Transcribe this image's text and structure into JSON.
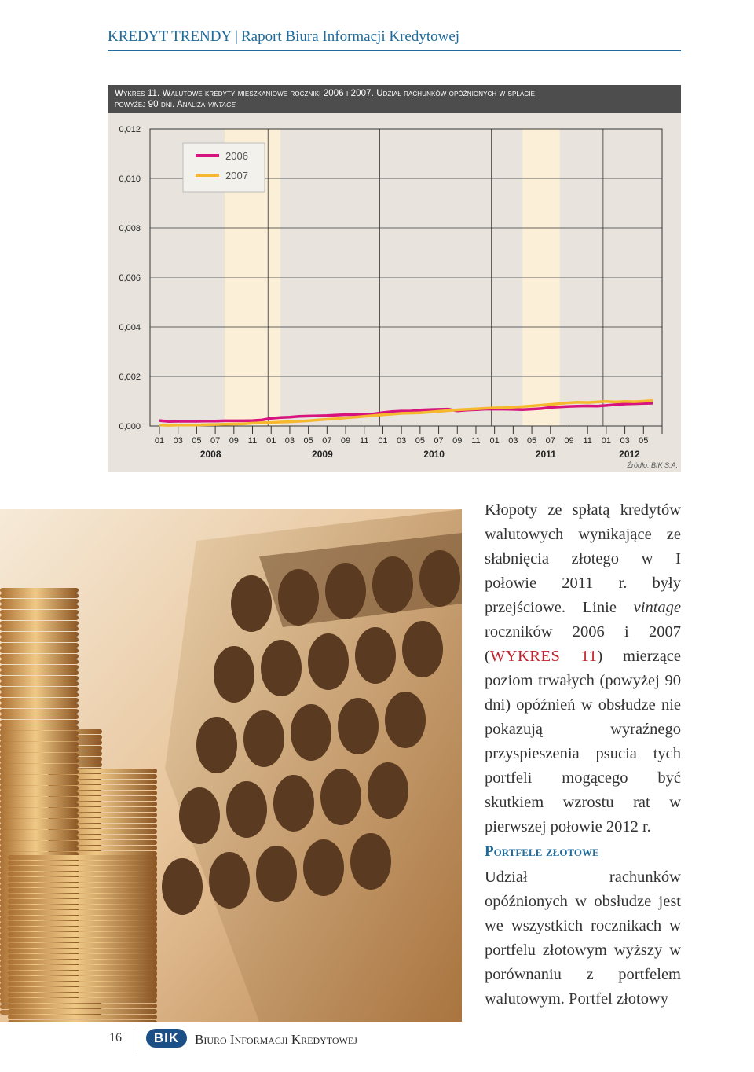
{
  "header": {
    "series_name": "KREDYT TRENDY",
    "separator": "|",
    "report_name": "Raport Biura Informacji Kredytowej"
  },
  "figure": {
    "title_line1": "Wykres 11. Walutowe kredyty mieszkaniowe roczniki 2006 i 2007. Udział rachunków opóźnionych w spłacie",
    "title_line2_prefix": "powyżej 90 dni. Analiza ",
    "title_line2_italic": "vintage",
    "source": "Źródło: BIK S.A."
  },
  "chart_data": {
    "type": "line",
    "title": "Wykres 11. Walutowe kredyty mieszkaniowe roczniki 2006 i 2007. Udział rachunków opóźnionych w spłacie powyżej 90 dni. Analiza vintage",
    "xlabel": "",
    "ylabel": "",
    "ylim": [
      0,
      0.012
    ],
    "y_ticks": [
      "0,000",
      "0,002",
      "0,004",
      "0,006",
      "0,008",
      "0,010",
      "0,012"
    ],
    "x_month_ticks": [
      "01",
      "03",
      "05",
      "07",
      "09",
      "11",
      "01",
      "03",
      "05",
      "07",
      "09",
      "11",
      "01",
      "03",
      "05",
      "07",
      "09",
      "11",
      "01",
      "03",
      "05",
      "07",
      "09",
      "11",
      "01",
      "03",
      "05"
    ],
    "x_year_labels": [
      "2008",
      "2009",
      "2010",
      "2011",
      "2012"
    ],
    "x_start": "2008-01",
    "x_end": "2012-06",
    "highlight_bands": [
      {
        "from": "2008-08",
        "to": "2009-02"
      },
      {
        "from": "2011-04",
        "to": "2011-08"
      }
    ],
    "legend": {
      "position": "top-left",
      "entries": [
        "2006",
        "2007"
      ]
    },
    "grid": true,
    "colors": {
      "2006": "#d6137f",
      "2007": "#f5b82e",
      "band": "#fbefd8",
      "background": "#e8e4dd"
    },
    "series": [
      {
        "name": "2006",
        "values": [
          0.00022,
          0.00018,
          0.00019,
          0.00019,
          0.00019,
          0.0002,
          0.0002,
          0.00021,
          0.00021,
          0.00021,
          0.00022,
          0.00024,
          0.00031,
          0.00034,
          0.00036,
          0.00039,
          0.0004,
          0.00041,
          0.00042,
          0.00044,
          0.00046,
          0.00046,
          0.00047,
          0.00049,
          0.00054,
          0.00058,
          0.0006,
          0.0006,
          0.00064,
          0.00066,
          0.00067,
          0.00068,
          0.00061,
          0.00064,
          0.00066,
          0.00068,
          0.00068,
          0.00068,
          0.00067,
          0.00066,
          0.00068,
          0.0007,
          0.00075,
          0.00077,
          0.00079,
          0.0008,
          0.00081,
          0.0008,
          0.00083,
          0.00086,
          0.00089,
          0.0009,
          0.00091,
          0.00092
        ]
      },
      {
        "name": "2007",
        "values": [
          4e-05,
          3e-05,
          4e-05,
          4e-05,
          4e-05,
          5e-05,
          6e-05,
          7e-05,
          8e-05,
          9e-05,
          0.00011,
          0.00013,
          0.00014,
          0.00016,
          0.00017,
          0.00019,
          0.00021,
          0.00024,
          0.00027,
          0.00029,
          0.00033,
          0.00036,
          0.00039,
          0.00042,
          0.00045,
          0.00048,
          0.00051,
          0.00052,
          0.00053,
          0.00056,
          0.00059,
          0.00062,
          0.00065,
          0.00067,
          0.00069,
          0.00071,
          0.00073,
          0.00074,
          0.00076,
          0.00078,
          0.00081,
          0.00084,
          0.00087,
          0.0009,
          0.00094,
          0.00096,
          0.00095,
          0.00097,
          0.00099,
          0.00097,
          0.00099,
          0.00098,
          0.001,
          0.00103
        ]
      }
    ]
  },
  "body": {
    "p1_a": "Kłopoty ze spłatą kredytów walutowych wynikające ze słabnięcia złotego w I połowie 2011 r. były przejściowe. Linie ",
    "p1_italic": "vintage",
    "p1_b": " roczników 2006 i 2007 (",
    "p1_ref": "WYKRES 11",
    "p1_c": ") mierzące poziom trwałych (powyżej 90 dni) opóźnień w obsłudze nie pokazują wyraźnego przyspieszenia psucia tych portfeli mogącego być skutkiem wzrostu rat w pierwszej połowie 2012 r.",
    "section_title": "Portfele złotowe",
    "p2": "Udział rachunków opóźnionych w obsłudze jest we wszystkich rocznikach w portfelu złotowym wyższy w porównaniu z portfelem walutowym. Portfel złotowy"
  },
  "footer": {
    "page_number": "16",
    "logo_text": "BIK",
    "org_name": "Biuro Informacji Kredytowej"
  }
}
